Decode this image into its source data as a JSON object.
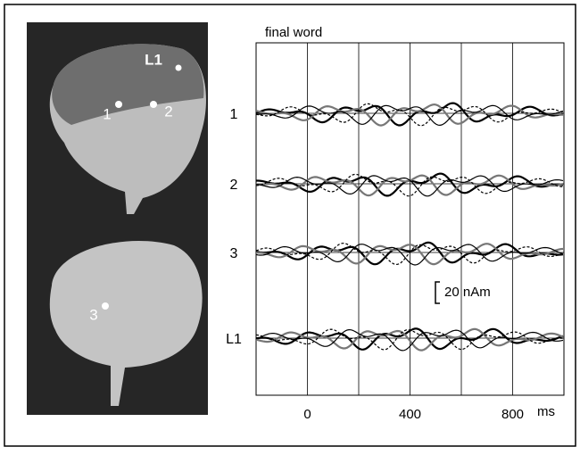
{
  "brain": {
    "labels": [
      "L1",
      "1",
      "2",
      "3"
    ]
  },
  "traces": {
    "title": "final word",
    "rows": [
      "1",
      "2",
      "3",
      "L1"
    ],
    "xlim": [
      -200,
      1000
    ],
    "xticks": [
      0,
      400,
      800
    ],
    "xminor": [
      200,
      600
    ],
    "x_unit": "ms",
    "scale_bar": "20 nAm"
  }
}
